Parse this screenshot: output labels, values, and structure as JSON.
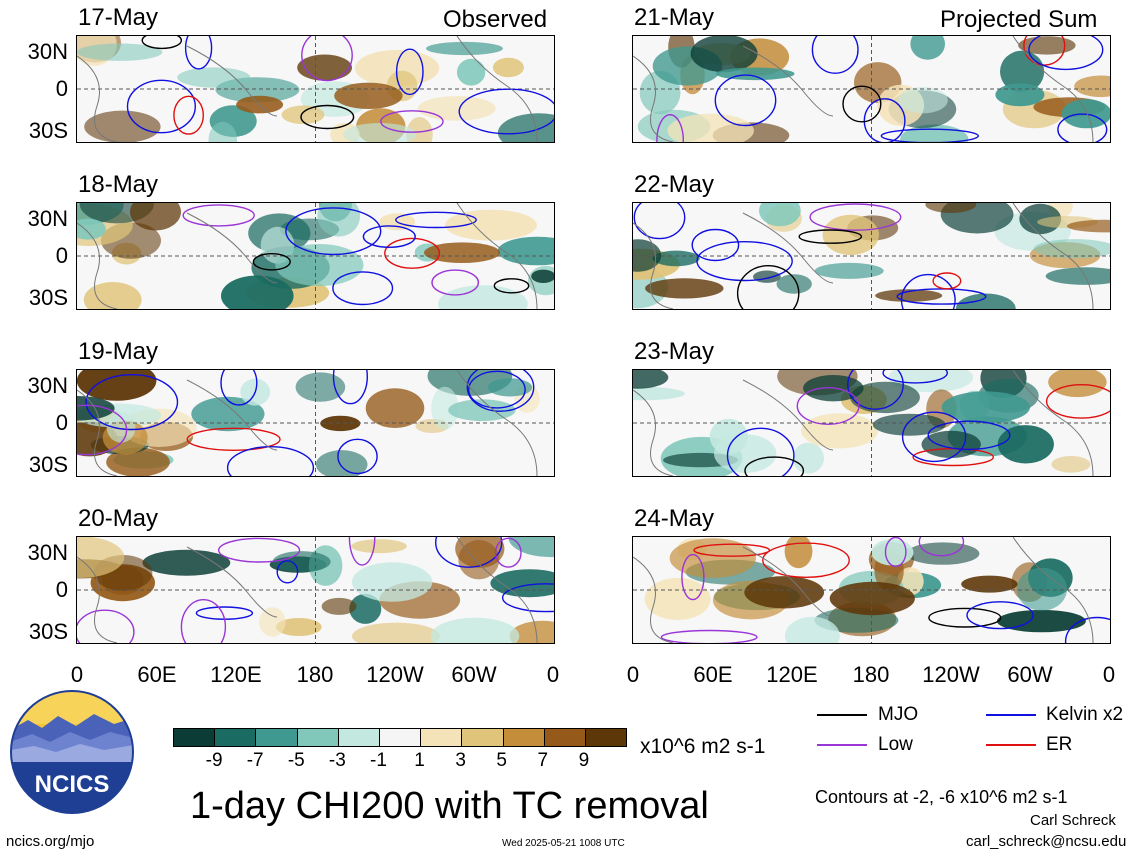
{
  "panels_left": [
    {
      "date": "17-May",
      "tag": "Observed"
    },
    {
      "date": "18-May",
      "tag": ""
    },
    {
      "date": "19-May",
      "tag": ""
    },
    {
      "date": "20-May",
      "tag": ""
    }
  ],
  "panels_right": [
    {
      "date": "21-May",
      "tag": "Projected Sum"
    },
    {
      "date": "22-May",
      "tag": ""
    },
    {
      "date": "23-May",
      "tag": ""
    },
    {
      "date": "24-May",
      "tag": ""
    }
  ],
  "lat_labels": [
    "30N",
    "0",
    "30S"
  ],
  "lon_labels": [
    "0",
    "60E",
    "120E",
    "180",
    "120W",
    "60W",
    "0"
  ],
  "colorbar": {
    "colors": [
      "#0b3d36",
      "#1a6b61",
      "#3f9990",
      "#81c8bb",
      "#c3e8e0",
      "#f5f5f5",
      "#f4e3b8",
      "#e0c47a",
      "#c38d3a",
      "#955a19",
      "#5e3708"
    ],
    "labels": [
      "-9",
      "-7",
      "-5",
      "-3",
      "-1",
      "1",
      "3",
      "5",
      "7",
      "9"
    ],
    "units": "x10^6 m2 s-1"
  },
  "legend": [
    {
      "label": "MJO",
      "color": "#000000"
    },
    {
      "label": "Kelvin x2",
      "color": "#1010e0"
    },
    {
      "label": "Low",
      "color": "#9a35d6"
    },
    {
      "label": "ER",
      "color": "#e01010"
    }
  ],
  "contour_note": "Contours at -2, -6 x10^6 m2 s-1",
  "title": "1-day CHI200 with TC removal",
  "logo_text": "NCICS",
  "footer": {
    "site": "ncics.org/mjo",
    "timestamp": "Wed 2025-05-21 1008 UTC",
    "author": "Carl Schreck",
    "email": "carl_schreck@ncsu.edu"
  }
}
